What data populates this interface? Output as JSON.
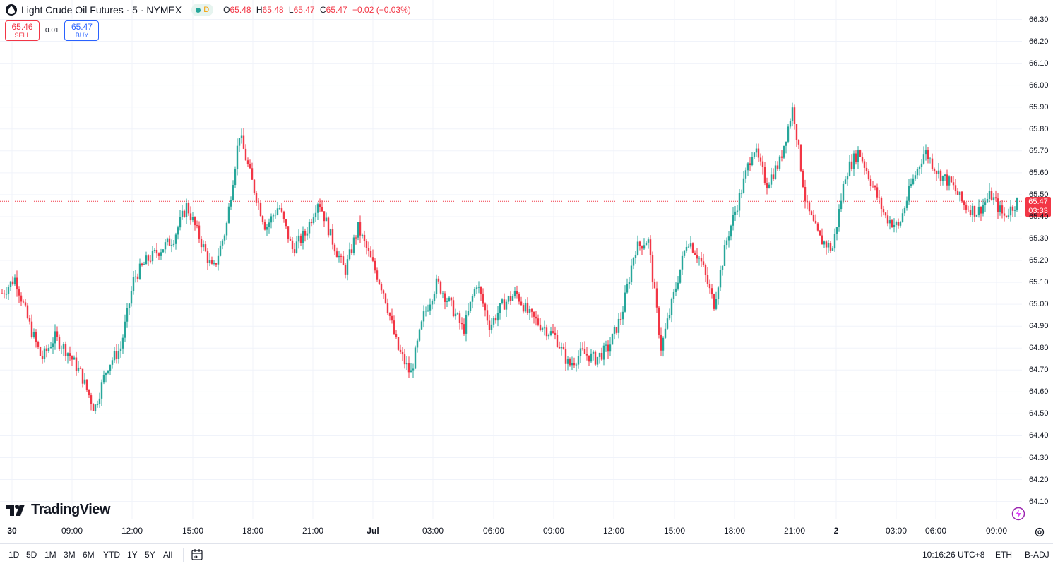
{
  "header": {
    "symbol_title": "Light Crude Oil Futures · 5 · NYMEX",
    "status_letter": "D",
    "ohlc": {
      "o_label": "O",
      "o": "65.48",
      "h_label": "H",
      "h": "65.48",
      "l_label": "L",
      "l": "65.47",
      "c_label": "C",
      "c": "65.47",
      "change": "−0.02 (−0.03%)"
    }
  },
  "trade": {
    "sell_price": "65.46",
    "sell_label": "SELL",
    "spread": "0.01",
    "buy_price": "65.47",
    "buy_label": "BUY"
  },
  "brand": {
    "name": "TradingView"
  },
  "price_tag": {
    "price": "65.47",
    "countdown": "03:33"
  },
  "colors": {
    "up": "#26a69a",
    "down": "#f23645",
    "grid": "#f0f3fa",
    "accent": "#2962ff"
  },
  "chart_data": {
    "type": "candlestick",
    "title": "Light Crude Oil Futures · 5 · NYMEX",
    "interval": "5",
    "exchange": "NYMEX",
    "ylim": [
      64.0,
      66.35
    ],
    "y_ticks": [
      "66.30",
      "66.20",
      "66.10",
      "66.00",
      "65.90",
      "65.80",
      "65.70",
      "65.60",
      "65.50",
      "65.40",
      "65.30",
      "65.20",
      "65.10",
      "65.00",
      "64.90",
      "64.80",
      "64.70",
      "64.60",
      "64.50",
      "64.40",
      "64.30",
      "64.20",
      "64.10"
    ],
    "x_ticks": [
      "30",
      "09:00",
      "12:00",
      "15:00",
      "18:00",
      "21:00",
      "Jul",
      "03:00",
      "06:00",
      "09:00",
      "12:00",
      "15:00",
      "18:00",
      "21:00",
      "2",
      "03:00",
      "06:00",
      "09:00"
    ],
    "last_price": 65.47,
    "grid": true,
    "series": [
      {
        "name": "close",
        "values": [
          65.05,
          65.12,
          64.92,
          64.75,
          64.85,
          64.78,
          64.68,
          64.52,
          64.72,
          64.8,
          65.12,
          65.2,
          65.25,
          65.3,
          65.45,
          65.3,
          65.15,
          65.35,
          65.78,
          65.55,
          65.35,
          65.45,
          65.25,
          65.32,
          65.48,
          65.3,
          65.15,
          65.35,
          65.2,
          65.05,
          64.8,
          64.68,
          64.95,
          65.1,
          65.0,
          64.88,
          65.1,
          64.9,
          65.0,
          65.05,
          64.95,
          64.9,
          64.85,
          64.72,
          64.78,
          64.75,
          64.8,
          64.95,
          65.25,
          65.3,
          64.8,
          65.05,
          65.3,
          65.2,
          65.0,
          65.3,
          65.5,
          65.72,
          65.55,
          65.65,
          65.9,
          65.45,
          65.3,
          65.25,
          65.6,
          65.7,
          65.55,
          65.4,
          65.35,
          65.55,
          65.7,
          65.6,
          65.55,
          65.45,
          65.42,
          65.5,
          65.4,
          65.47
        ]
      }
    ]
  },
  "bottom_bar": {
    "ranges": [
      "1D",
      "5D",
      "1M",
      "3M",
      "6M",
      "YTD",
      "1Y",
      "5Y",
      "All"
    ],
    "time": "10:16:26 UTC+8",
    "session": "ETH",
    "adjust": "B-ADJ"
  }
}
